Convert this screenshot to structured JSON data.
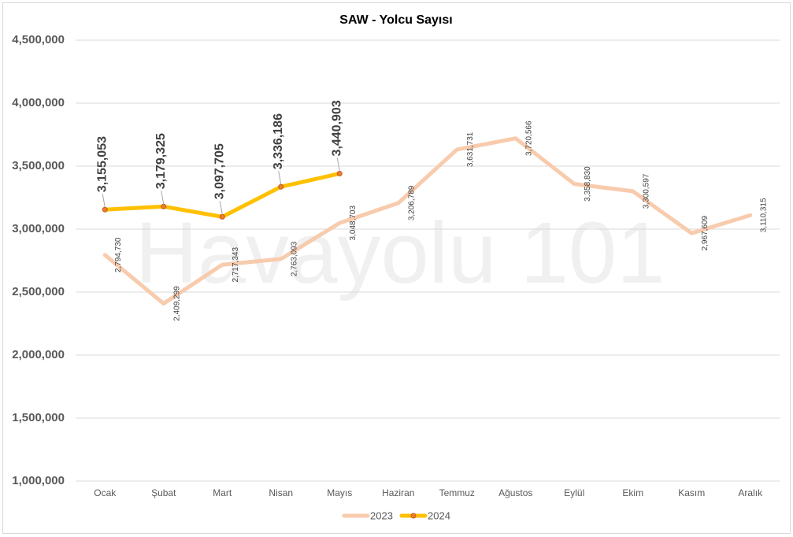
{
  "chart_data": {
    "type": "line",
    "title": "SAW - Yolcu Sayısı",
    "watermark": "Havayolu 101",
    "categories": [
      "Ocak",
      "Şubat",
      "Mart",
      "Nisan",
      "Mayıs",
      "Haziran",
      "Temmuz",
      "Ağustos",
      "Eylül",
      "Ekim",
      "Kasım",
      "Aralık"
    ],
    "series": [
      {
        "name": "2023",
        "color": "#f8cbad",
        "values": [
          2794730,
          2409299,
          2717343,
          2763093,
          3048703,
          3206789,
          3631731,
          3720566,
          3358830,
          3300597,
          2967609,
          3110315
        ],
        "value_labels": [
          "2,794,730",
          "2,409,299",
          "2,717,343",
          "2,763,093",
          "3,048,703",
          "3,206,789",
          "3,631,731",
          "3,720,566",
          "3,358,830",
          "3,300,597",
          "2,967,609",
          "3,110,315"
        ]
      },
      {
        "name": "2024",
        "color": "#ffc000",
        "marker_color": "#ed7d31",
        "values": [
          3155053,
          3179325,
          3097705,
          3336186,
          3440903,
          null,
          null,
          null,
          null,
          null,
          null,
          null
        ],
        "value_labels": [
          "3,155,053",
          "3,179,325",
          "3,097,705",
          "3,336,186",
          "3,440,903",
          null,
          null,
          null,
          null,
          null,
          null,
          null
        ]
      }
    ],
    "ylim": [
      1000000,
      4500000
    ],
    "yticks": [
      {
        "value": 1000000,
        "label": "1,000,000"
      },
      {
        "value": 1500000,
        "label": "1,500,000"
      },
      {
        "value": 2000000,
        "label": "2,000,000"
      },
      {
        "value": 2500000,
        "label": "2,500,000"
      },
      {
        "value": 3000000,
        "label": "3,000,000"
      },
      {
        "value": 3500000,
        "label": "3,500,000"
      },
      {
        "value": 4000000,
        "label": "4,000,000"
      },
      {
        "value": 4500000,
        "label": "4,500,000"
      }
    ],
    "grid": true,
    "legend": "bottom"
  }
}
